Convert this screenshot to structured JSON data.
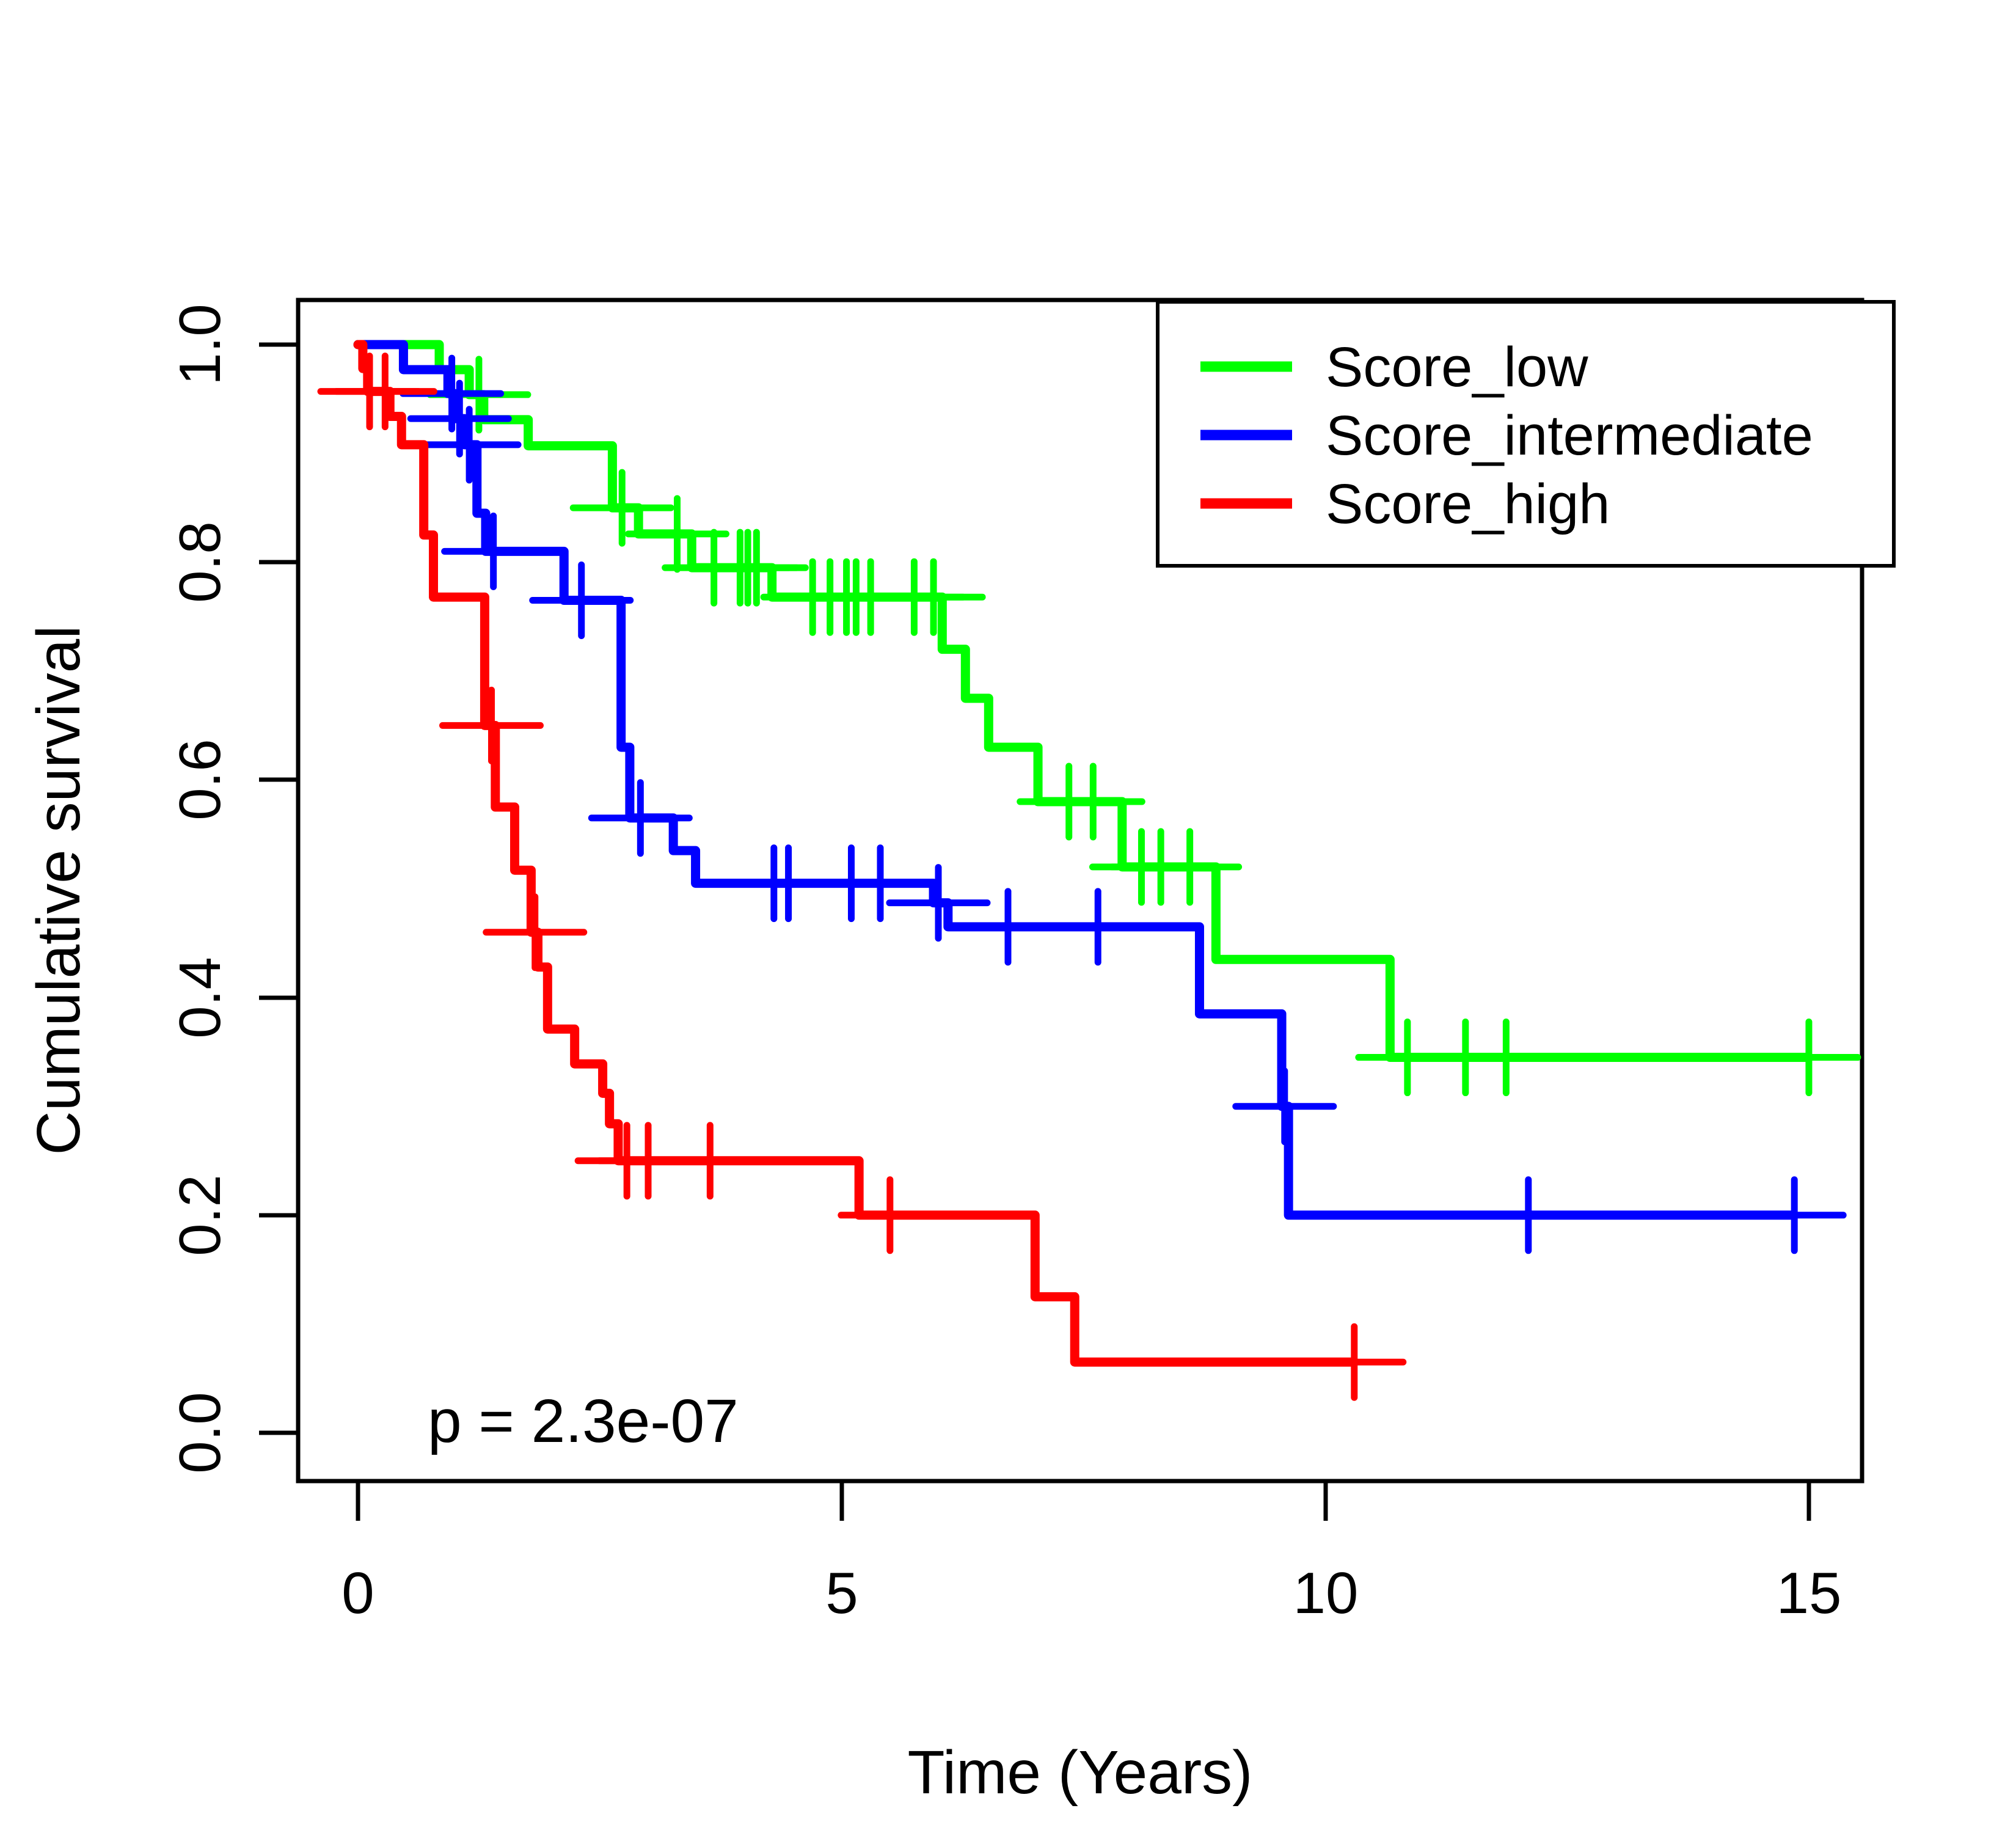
{
  "figure": {
    "background": "#ffffff",
    "frame_color": "#000000"
  },
  "chart_data": {
    "type": "line",
    "subtype": "kaplan-meier-step-curves",
    "title": "",
    "xlabel": "Time (Years)",
    "ylabel": "Cumulative survival",
    "xlim": [
      -0.6,
      15.6
    ],
    "ylim": [
      0.0,
      1.0
    ],
    "xticks": [
      0,
      5,
      10,
      15
    ],
    "xtick_labels": [
      "0",
      "5",
      "10",
      "15"
    ],
    "yticks": [
      1.0,
      0.8,
      0.6,
      0.4,
      0.2,
      0.0
    ],
    "ytick_labels": [
      "1.0",
      "0.8",
      "0.6",
      "0.4",
      "0.2",
      "0.0"
    ],
    "grid": false,
    "legend_position": "top-right",
    "annotation": {
      "text": "p = 2.3e-07",
      "x_data": 0.7,
      "y_data": 0.05
    },
    "series": [
      {
        "name": "Score_low",
        "color": "#00FF00",
        "steps": [
          [
            0,
            1.0
          ],
          [
            0.84,
            0.977
          ],
          [
            1.15,
            0.954
          ],
          [
            1.3,
            0.931
          ],
          [
            1.76,
            0.907
          ],
          [
            2.63,
            0.85
          ],
          [
            2.9,
            0.826
          ],
          [
            3.45,
            0.795
          ],
          [
            4.28,
            0.768
          ],
          [
            6.04,
            0.72
          ],
          [
            6.28,
            0.675
          ],
          [
            6.52,
            0.63
          ],
          [
            7.03,
            0.58
          ],
          [
            7.9,
            0.52
          ],
          [
            8.87,
            0.435
          ],
          [
            10.67,
            0.345
          ],
          [
            15.0,
            0.345
          ]
        ],
        "censors": [
          [
            1.25,
            0.954
          ],
          [
            2.73,
            0.85
          ],
          [
            3.3,
            0.826
          ],
          [
            3.68,
            0.795
          ],
          [
            3.95,
            0.795
          ],
          [
            4.03,
            0.795
          ],
          [
            4.12,
            0.795
          ],
          [
            4.7,
            0.768
          ],
          [
            4.88,
            0.768
          ],
          [
            5.05,
            0.768
          ],
          [
            5.15,
            0.768
          ],
          [
            5.3,
            0.768
          ],
          [
            5.75,
            0.768
          ],
          [
            5.95,
            0.768
          ],
          [
            7.35,
            0.58
          ],
          [
            7.6,
            0.58
          ],
          [
            8.1,
            0.52
          ],
          [
            8.3,
            0.52
          ],
          [
            8.6,
            0.52
          ],
          [
            10.85,
            0.345
          ],
          [
            11.45,
            0.345
          ],
          [
            11.87,
            0.345
          ],
          [
            15.0,
            0.345
          ]
        ]
      },
      {
        "name": "Score_intermediate",
        "color": "#0000FF",
        "steps": [
          [
            0,
            1.0
          ],
          [
            0.47,
            0.977
          ],
          [
            0.93,
            0.955
          ],
          [
            1.0,
            0.932
          ],
          [
            1.1,
            0.908
          ],
          [
            1.23,
            0.845
          ],
          [
            1.32,
            0.81
          ],
          [
            2.13,
            0.765
          ],
          [
            2.72,
            0.63
          ],
          [
            2.81,
            0.565
          ],
          [
            3.26,
            0.535
          ],
          [
            3.49,
            0.505
          ],
          [
            5.95,
            0.487
          ],
          [
            6.1,
            0.465
          ],
          [
            8.7,
            0.385
          ],
          [
            9.55,
            0.3
          ],
          [
            9.62,
            0.2
          ],
          [
            14.85,
            0.2
          ]
        ],
        "censors": [
          [
            0.97,
            0.955
          ],
          [
            1.05,
            0.932
          ],
          [
            1.15,
            0.908
          ],
          [
            1.4,
            0.81
          ],
          [
            2.31,
            0.765
          ],
          [
            2.92,
            0.565
          ],
          [
            4.3,
            0.505
          ],
          [
            4.45,
            0.505
          ],
          [
            5.1,
            0.505
          ],
          [
            5.4,
            0.505
          ],
          [
            6.0,
            0.487
          ],
          [
            6.72,
            0.465
          ],
          [
            7.65,
            0.465
          ],
          [
            9.58,
            0.3
          ],
          [
            12.1,
            0.2
          ],
          [
            14.85,
            0.2
          ]
        ]
      },
      {
        "name": "Score_high",
        "color": "#FF0000",
        "steps": [
          [
            0,
            1.0
          ],
          [
            0.05,
            0.978
          ],
          [
            0.1,
            0.957
          ],
          [
            0.33,
            0.934
          ],
          [
            0.45,
            0.908
          ],
          [
            0.68,
            0.825
          ],
          [
            0.78,
            0.768
          ],
          [
            1.31,
            0.65
          ],
          [
            1.42,
            0.575
          ],
          [
            1.62,
            0.517
          ],
          [
            1.79,
            0.46
          ],
          [
            1.86,
            0.428
          ],
          [
            1.96,
            0.371
          ],
          [
            2.24,
            0.339
          ],
          [
            2.53,
            0.312
          ],
          [
            2.6,
            0.284
          ],
          [
            2.69,
            0.25
          ],
          [
            5.18,
            0.2
          ],
          [
            7.0,
            0.125
          ],
          [
            7.41,
            0.065
          ],
          [
            10.3,
            0.065
          ]
        ],
        "censors": [
          [
            0.12,
            0.957
          ],
          [
            0.28,
            0.957
          ],
          [
            1.38,
            0.65
          ],
          [
            1.83,
            0.46
          ],
          [
            2.78,
            0.25
          ],
          [
            3.0,
            0.25
          ],
          [
            3.64,
            0.25
          ],
          [
            5.5,
            0.2
          ],
          [
            10.3,
            0.065
          ]
        ]
      }
    ]
  }
}
